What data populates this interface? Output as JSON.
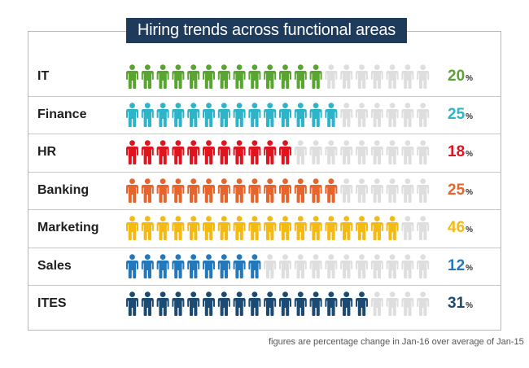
{
  "title": "Hiring trends across functional areas",
  "footnote": "figures are percentage change in Jan-16 over average of Jan-15",
  "percent_sign": "%",
  "inactive_color": "#dedede",
  "icon": "person-icon",
  "chart_data": {
    "type": "pictograph",
    "title": "Hiring trends across functional areas",
    "unit": "%",
    "total_icons_per_row": 20,
    "categories": [
      "IT",
      "Finance",
      "HR",
      "Banking",
      "Marketing",
      "Sales",
      "ITES"
    ],
    "values": [
      20,
      25,
      18,
      25,
      46,
      12,
      31
    ],
    "filled_icons": [
      13,
      14,
      11,
      14,
      18,
      9,
      16
    ],
    "colors": [
      "#5aa532",
      "#2db4c8",
      "#e0141e",
      "#e8642d",
      "#f5b914",
      "#2378bc",
      "#1b4a72"
    ],
    "value_colors": [
      "#5aa532",
      "#2db4c8",
      "#e0141e",
      "#e8642d",
      "#f5b914",
      "#2378bc",
      "#1b4a72"
    ]
  }
}
